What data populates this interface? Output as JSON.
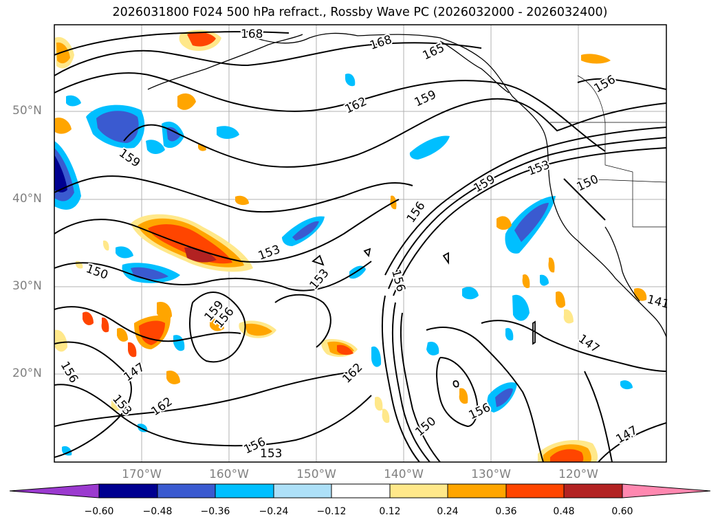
{
  "title": "2026031800 F024 500 hPa refract., Rossby Wave PC (2026032000 - 2026032400)",
  "lat_labels": [
    "50°N",
    "40°N",
    "30°N",
    "20°N"
  ],
  "lon_labels": [
    "170°W",
    "160°W",
    "150°W",
    "140°W",
    "130°W",
    "120°W"
  ],
  "contour_labels": [
    "168",
    "168",
    "165",
    "162",
    "159",
    "159",
    "156",
    "153",
    "150",
    "156",
    "159",
    "153",
    "153",
    "156",
    "159",
    "156",
    "162",
    "147",
    "153",
    "162",
    "156",
    "150",
    "156",
    "147",
    "141",
    "147",
    "153",
    "150",
    "156"
  ],
  "colorbar": {
    "tick_labels": [
      "−0.60",
      "−0.48",
      "−0.36",
      "−0.24",
      "−0.12",
      "0.12",
      "0.24",
      "0.36",
      "0.48",
      "0.60"
    ],
    "colors": [
      "#9b3acf",
      "#000090",
      "#3a5ad0",
      "#00bfff",
      "#ade0f8",
      "#ffffff",
      "#ffe88a",
      "#ffa500",
      "#ff4500",
      "#b22222",
      "#ff88b0"
    ],
    "extend": "both"
  },
  "colors": {
    "frame": "#000000",
    "grid": "#b0b0b0",
    "contour": "#000000"
  }
}
